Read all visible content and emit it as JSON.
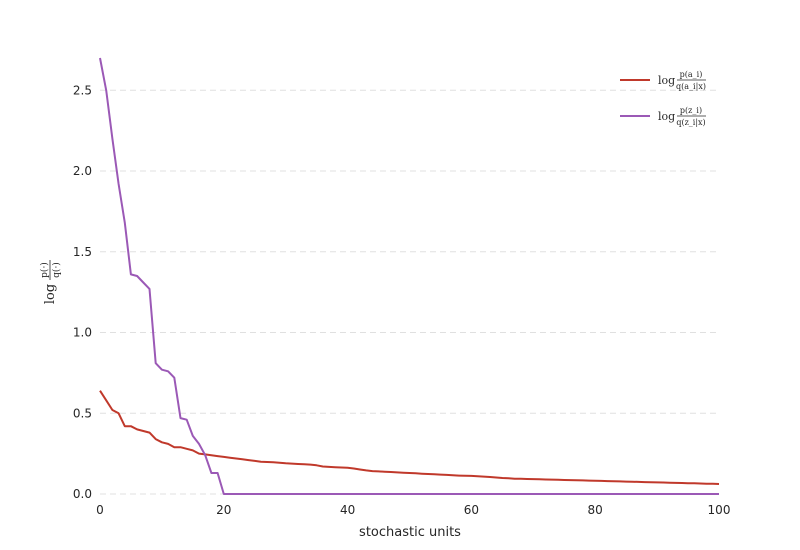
{
  "chart_data": {
    "type": "line",
    "title": "",
    "xlabel": "stochastic units",
    "ylabel": "log p(·)/q(·)",
    "ylabel_parts": {
      "log": "log",
      "num": "p(·)",
      "den": "q(·)"
    },
    "xlim": [
      0,
      100
    ],
    "ylim": [
      0.0,
      2.7
    ],
    "x_ticks": [
      0,
      20,
      40,
      60,
      80,
      100
    ],
    "y_ticks": [
      0.0,
      0.5,
      1.0,
      1.5,
      2.0,
      2.5
    ],
    "y_tick_labels": [
      "0.0",
      "0.5",
      "1.0",
      "1.5",
      "2.0",
      "2.5"
    ],
    "grid": "y-dashed",
    "legend_position": "top-right",
    "series": [
      {
        "name": "log p(a_i)/q(a_i|x)",
        "legend": {
          "log": "log",
          "num": "p(a_i)",
          "den": "q(a_i|x)"
        },
        "color": "#c0392b",
        "x": [
          0,
          1,
          2,
          3,
          4,
          5,
          6,
          7,
          8,
          9,
          10,
          11,
          12,
          13,
          14,
          15,
          16,
          17,
          18,
          19,
          20,
          21,
          22,
          23,
          24,
          25,
          26,
          27,
          28,
          29,
          30,
          31,
          32,
          33,
          34,
          35,
          36,
          37,
          38,
          39,
          40,
          41,
          42,
          43,
          44,
          45,
          46,
          47,
          48,
          49,
          50,
          51,
          52,
          53,
          54,
          55,
          56,
          57,
          58,
          59,
          60,
          61,
          62,
          63,
          64,
          65,
          66,
          67,
          68,
          69,
          70,
          71,
          72,
          73,
          74,
          75,
          76,
          77,
          78,
          79,
          80,
          81,
          82,
          83,
          84,
          85,
          86,
          87,
          88,
          89,
          90,
          91,
          92,
          93,
          94,
          95,
          96,
          97,
          98,
          99,
          100
        ],
        "values": [
          0.64,
          0.58,
          0.52,
          0.5,
          0.42,
          0.42,
          0.4,
          0.39,
          0.38,
          0.34,
          0.32,
          0.31,
          0.29,
          0.29,
          0.28,
          0.27,
          0.25,
          0.245,
          0.24,
          0.235,
          0.23,
          0.225,
          0.22,
          0.215,
          0.21,
          0.205,
          0.2,
          0.198,
          0.196,
          0.194,
          0.19,
          0.188,
          0.186,
          0.184,
          0.182,
          0.178,
          0.17,
          0.168,
          0.166,
          0.164,
          0.162,
          0.158,
          0.152,
          0.146,
          0.142,
          0.14,
          0.138,
          0.136,
          0.134,
          0.132,
          0.13,
          0.128,
          0.126,
          0.124,
          0.122,
          0.12,
          0.118,
          0.116,
          0.114,
          0.113,
          0.112,
          0.11,
          0.108,
          0.105,
          0.102,
          0.099,
          0.097,
          0.095,
          0.094,
          0.093,
          0.092,
          0.091,
          0.09,
          0.089,
          0.088,
          0.087,
          0.086,
          0.085,
          0.084,
          0.083,
          0.082,
          0.081,
          0.08,
          0.079,
          0.078,
          0.077,
          0.076,
          0.075,
          0.074,
          0.073,
          0.072,
          0.071,
          0.07,
          0.069,
          0.068,
          0.067,
          0.066,
          0.065,
          0.064,
          0.063,
          0.062
        ]
      },
      {
        "name": "log p(z_i)/q(z_i|x)",
        "legend": {
          "log": "log",
          "num": "p(z_i)",
          "den": "q(z_i|x)"
        },
        "color": "#9b59b6",
        "x": [
          0,
          1,
          2,
          3,
          4,
          5,
          6,
          7,
          8,
          9,
          10,
          11,
          12,
          13,
          14,
          15,
          16,
          17,
          18,
          19,
          20,
          100
        ],
        "values": [
          2.7,
          2.5,
          2.2,
          1.92,
          1.68,
          1.36,
          1.35,
          1.31,
          1.27,
          0.81,
          0.77,
          0.76,
          0.72,
          0.47,
          0.46,
          0.36,
          0.31,
          0.24,
          0.13,
          0.13,
          0.0,
          0.0
        ]
      }
    ]
  }
}
